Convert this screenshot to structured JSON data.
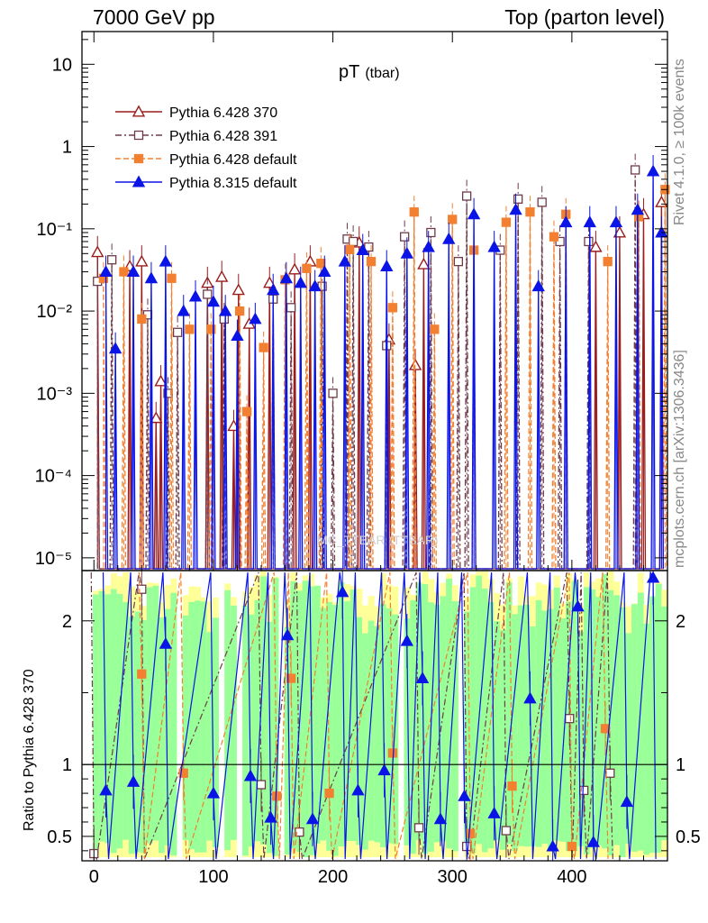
{
  "header": {
    "left": "7000 GeV pp",
    "right": "Top (parton level)"
  },
  "side_labels": {
    "rivet": "Rivet 4.1.0, ≥ 100k events",
    "mcplots": "mcplots.cern.ch [arXiv:1306.3436]"
  },
  "chart_data": {
    "type": "line",
    "title": "pT",
    "title_sub": "(tbar)",
    "watermark": "MC_TTBAR (TTBAR)",
    "xlabel": "",
    "xlim": [
      -10,
      480
    ],
    "xticks": [
      "0",
      "100",
      "200",
      "300",
      "400"
    ],
    "upper": {
      "ylabel": "",
      "yscale": "log",
      "ylim": [
        7e-06,
        25
      ],
      "yticks": [
        "10⁻⁵",
        "10⁻⁴",
        "10⁻³",
        "10⁻²",
        "10⁻¹",
        "1",
        "10"
      ]
    },
    "ratio": {
      "ylabel": "Ratio to Pythia 6.428 370",
      "ylim": [
        0.33,
        2.35
      ],
      "yticks": [
        "0.5",
        "1",
        "2"
      ],
      "reference_line": 1
    },
    "legend_position": "top-left",
    "series": [
      {
        "name": "Pythia 6.428 370",
        "color": "#9b1c1c",
        "marker": "open-triangle",
        "style": "solid",
        "points": [
          [
            3,
            0.052
          ],
          [
            30,
            0.035
          ],
          [
            40,
            0.04
          ],
          [
            52,
            0.0005
          ],
          [
            56,
            0.0014
          ],
          [
            95,
            0.022
          ],
          [
            107,
            0.026
          ],
          [
            117,
            0.0004
          ],
          [
            121,
            0.018
          ],
          [
            130,
            0.007
          ],
          [
            147,
            0.022
          ],
          [
            168,
            0.032
          ],
          [
            181,
            0.04
          ],
          [
            222,
            0.068
          ],
          [
            247,
            0.0045
          ],
          [
            269,
            0.0022
          ],
          [
            276,
            0.037
          ],
          [
            420,
            0.06
          ],
          [
            440,
            0.09
          ],
          [
            460,
            0.15
          ],
          [
            475,
            0.21
          ]
        ]
      },
      {
        "name": "Pythia 6.428 391",
        "color": "#6e3b4b",
        "marker": "open-square",
        "style": "dashdot",
        "points": [
          [
            3,
            0.023
          ],
          [
            15,
            0.042
          ],
          [
            45,
            0.009
          ],
          [
            62,
            0.001
          ],
          [
            70,
            0.0055
          ],
          [
            95,
            0.016
          ],
          [
            109,
            0.008
          ],
          [
            150,
            0.014
          ],
          [
            165,
            0.011
          ],
          [
            191,
            0.02
          ],
          [
            200,
            0.001
          ],
          [
            212,
            0.075
          ],
          [
            217,
            0.07
          ],
          [
            230,
            0.06
          ],
          [
            245,
            0.0038
          ],
          [
            260,
            0.08
          ],
          [
            282,
            0.09
          ],
          [
            305,
            0.04
          ],
          [
            312,
            0.25
          ],
          [
            340,
            0.055
          ],
          [
            355,
            0.23
          ],
          [
            375,
            0.21
          ],
          [
            390,
            0.07
          ],
          [
            414,
            0.07
          ],
          [
            453,
            0.52
          ]
        ]
      },
      {
        "name": "Pythia 6.428 default",
        "color": "#f28030",
        "marker": "filled-square",
        "style": "dashed",
        "points": [
          [
            8,
            0.025
          ],
          [
            25,
            0.03
          ],
          [
            40,
            0.008
          ],
          [
            65,
            0.025
          ],
          [
            80,
            0.006
          ],
          [
            98,
            0.006
          ],
          [
            122,
            0.01
          ],
          [
            128,
            0.0006
          ],
          [
            142,
            0.0036
          ],
          [
            160,
            0.024
          ],
          [
            178,
            0.033
          ],
          [
            190,
            0.038
          ],
          [
            214,
            0.056
          ],
          [
            232,
            0.04
          ],
          [
            250,
            0.011
          ],
          [
            268,
            0.16
          ],
          [
            285,
            0.006
          ],
          [
            300,
            0.13
          ],
          [
            318,
            0.055
          ],
          [
            345,
            0.12
          ],
          [
            365,
            0.16
          ],
          [
            385,
            0.08
          ],
          [
            395,
            0.15
          ],
          [
            430,
            0.04
          ],
          [
            456,
            0.14
          ],
          [
            478,
            0.3
          ]
        ]
      },
      {
        "name": "Pythia 8.315 default",
        "color": "#0a14e6",
        "marker": "filled-triangle",
        "style": "solid",
        "points": [
          [
            10,
            0.03
          ],
          [
            18,
            0.0035
          ],
          [
            33,
            0.03
          ],
          [
            48,
            0.025
          ],
          [
            60,
            0.04
          ],
          [
            75,
            0.01
          ],
          [
            85,
            0.015
          ],
          [
            100,
            0.013
          ],
          [
            110,
            0.01
          ],
          [
            120,
            0.005
          ],
          [
            135,
            0.008
          ],
          [
            150,
            0.018
          ],
          [
            161,
            0.025
          ],
          [
            173,
            0.022
          ],
          [
            185,
            0.02
          ],
          [
            193,
            0.03
          ],
          [
            210,
            0.04
          ],
          [
            225,
            0.055
          ],
          [
            245,
            0.035
          ],
          [
            262,
            0.05
          ],
          [
            280,
            0.06
          ],
          [
            297,
            0.075
          ],
          [
            318,
            0.15
          ],
          [
            335,
            0.06
          ],
          [
            353,
            0.17
          ],
          [
            372,
            0.02
          ],
          [
            395,
            0.12
          ],
          [
            415,
            0.12
          ],
          [
            437,
            0.12
          ],
          [
            455,
            0.17
          ],
          [
            468,
            0.5
          ],
          [
            475,
            0.09
          ]
        ]
      }
    ],
    "ratio_series": [
      {
        "name": "Pythia 6.428 391",
        "points": [
          [
            0,
            0.38
          ],
          [
            40,
            2.22
          ],
          [
            140,
            0.86
          ],
          [
            172,
            0.53
          ],
          [
            272,
            0.56
          ],
          [
            312,
            0.43
          ],
          [
            345,
            0.54
          ],
          [
            398,
            1.32
          ],
          [
            410,
            0.82
          ],
          [
            432,
            0.94
          ]
        ]
      },
      {
        "name": "Pythia 6.428 default",
        "points": [
          [
            40,
            1.63
          ],
          [
            75,
            0.94
          ],
          [
            153,
            0.78
          ],
          [
            165,
            1.6
          ],
          [
            197,
            0.8
          ],
          [
            250,
            1.08
          ],
          [
            315,
            0.52
          ],
          [
            350,
            0.85
          ],
          [
            400,
            0.43
          ],
          [
            428,
            1.25
          ]
        ]
      },
      {
        "name": "Pythia 8.315 default",
        "points": [
          [
            10,
            0.82
          ],
          [
            33,
            0.88
          ],
          [
            60,
            1.84
          ],
          [
            100,
            0.8
          ],
          [
            131,
            0.92
          ],
          [
            148,
            0.63
          ],
          [
            162,
            1.9
          ],
          [
            183,
            0.62
          ],
          [
            208,
            2.2
          ],
          [
            221,
            0.82
          ],
          [
            243,
            0.96
          ],
          [
            262,
            1.86
          ],
          [
            275,
            1.6
          ],
          [
            290,
            0.62
          ],
          [
            310,
            0.78
          ],
          [
            335,
            0.66
          ],
          [
            365,
            1.46
          ],
          [
            384,
            0.43
          ],
          [
            405,
            2.1
          ],
          [
            418,
            0.46
          ],
          [
            446,
            0.74
          ],
          [
            468,
            2.3
          ]
        ]
      }
    ]
  }
}
